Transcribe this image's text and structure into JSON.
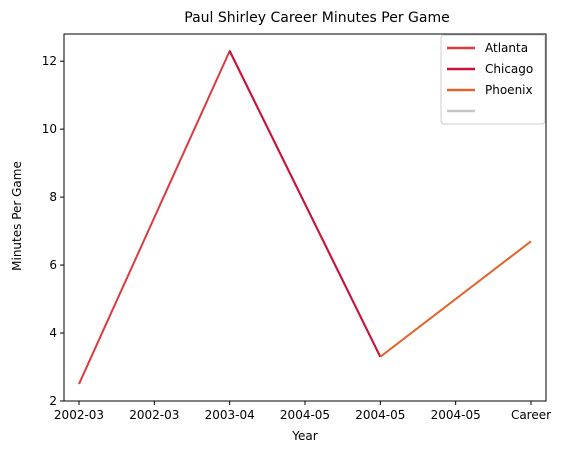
{
  "chart_data": {
    "type": "line",
    "title": "Paul Shirley Career Minutes Per Game",
    "xlabel": "Year",
    "ylabel": "Minutes Per Game",
    "x_tick_labels": [
      "2002-03",
      "2002-03",
      "2003-04",
      "2004-05",
      "2004-05",
      "2004-05",
      "Career"
    ],
    "ylim": [
      2,
      12.8
    ],
    "y_ticks": [
      2,
      4,
      6,
      8,
      10,
      12
    ],
    "grid": false,
    "legend_placement": "top-right",
    "series": [
      {
        "name": "Atlanta",
        "color": "#dc3a3f",
        "points": [
          [
            0,
            2.5
          ],
          [
            2,
            12.3
          ],
          [
            4,
            3.3
          ]
        ]
      },
      {
        "name": "Chicago",
        "color": "#c8143c",
        "points": [
          [
            2,
            12.3
          ],
          [
            4,
            3.3
          ]
        ]
      },
      {
        "name": "Phoenix",
        "color": "#e2622a",
        "points": [
          [
            4,
            3.3
          ],
          [
            6,
            6.7
          ]
        ]
      },
      {
        "name": "",
        "color": "#c4c4c4",
        "points": []
      }
    ]
  }
}
